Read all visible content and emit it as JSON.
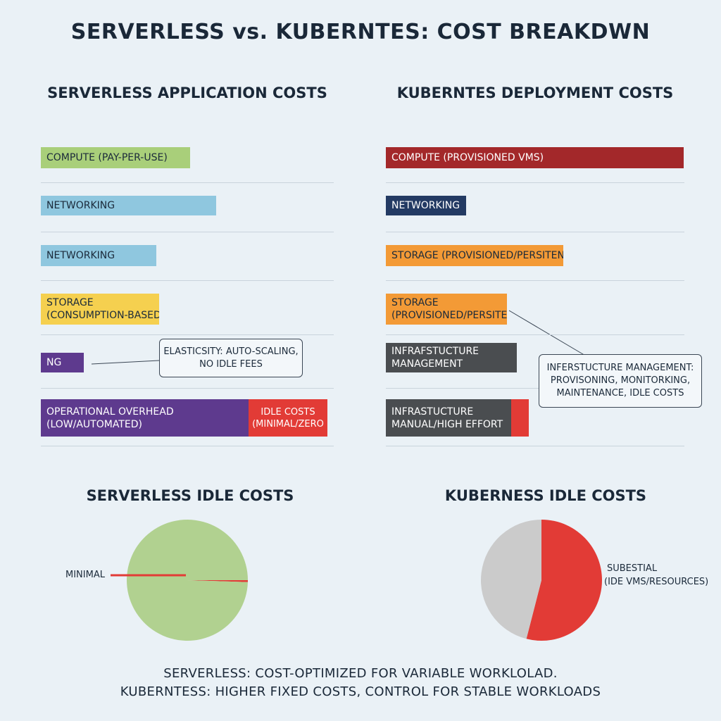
{
  "title": "SERVERLESS vs. KUBERNTES: COST BREAKDWN",
  "left_panel": {
    "title": "SERVERLESS APPLICATION COSTS",
    "bars": [
      {
        "lines": [
          "COMPUTE (PAY-PER-USE)"
        ],
        "color": "#a9cf7a",
        "light": false
      },
      {
        "lines": [
          "NETWORKING"
        ],
        "color": "#8fc7df",
        "light": false
      },
      {
        "lines": [
          "NETWORKING"
        ],
        "color": "#8fc7df",
        "light": false
      },
      {
        "lines": [
          "STORAGE",
          "(CONSUMPTION-BASED)"
        ],
        "color": "#f5d04f",
        "light": false
      },
      {
        "lines": [
          "NG"
        ],
        "color": "#5e3a8e",
        "light": true
      },
      {
        "lines": [
          "OPERATIONAL OVERHEAD",
          "(LOW/AUTOMATED)"
        ],
        "color": "#5e3a8e",
        "light": true
      }
    ],
    "segment": {
      "lines": [
        "IDLE COSTS",
        "(MINIMAL/ZERO"
      ],
      "color": "#e23b36"
    },
    "callout": [
      "ELASTICSITY: AUTO-SCALING,",
      "NO IDLE FEES"
    ]
  },
  "right_panel": {
    "title": "KUBERNTES DEPLOYMENT COSTS",
    "bars": [
      {
        "lines": [
          "COMPUTE (PROVISIONED VMS)"
        ],
        "color": "#a3282a",
        "light": true
      },
      {
        "lines": [
          "NETWORKING"
        ],
        "color": "#233a63",
        "light": true
      },
      {
        "lines": [
          "STORAGE (PROVISIONED/PERSITENT"
        ],
        "color": "#f39a36",
        "light": false
      },
      {
        "lines": [
          "STORAGE",
          "(PROVISIONED/PERSITENT"
        ],
        "color": "#f39a36",
        "light": false
      },
      {
        "lines": [
          "INFRAFSTUCTURE",
          "MANAGEMENT"
        ],
        "color": "#4a4d50",
        "light": true
      },
      {
        "lines": [
          "INFRASTUCTURE",
          "MANUAL/HIGH EFFORT"
        ],
        "color": "#4a4d50",
        "light": true
      }
    ],
    "segment": {
      "lines": [
        ""
      ],
      "color": "#e23b36"
    },
    "callout": [
      "INFERSTUCTURE MANAGEMENT:",
      "PROVISONING, MONITORKING,",
      "MAINTENANCE, IDLE COSTS"
    ]
  },
  "chart_data": [
    {
      "type": "pie",
      "title": "SERVERLESS IDLE COSTS",
      "slices": [
        {
          "label": "MINIMAL",
          "value": 0.5,
          "color": "#e23b36"
        },
        {
          "label": "",
          "value": 99.5,
          "color": "#b1d190"
        }
      ]
    },
    {
      "type": "pie",
      "title": "KUBERNESS IDLE COSTS",
      "slices": [
        {
          "label": "SUBESTIAL\n(IDE VMS/RESOURCES)",
          "value": 54,
          "color": "#e23b36"
        },
        {
          "label": "",
          "value": 46,
          "color": "#cbcbcb"
        }
      ]
    }
  ],
  "pie_labels": {
    "left": "MINIMAL",
    "right_line1": "SUBESTIAL",
    "right_line2": "(IDE VMS/RESOURCES)"
  },
  "footer": {
    "line1": "SERVERLESS: COST-OPTIMIZED FOR VARIABLE WORKLOLAD.",
    "line2": "KUBERNTESS: HIGHER FIXED COSTS, CONTROL FOR STABLE WORKLOADS"
  }
}
